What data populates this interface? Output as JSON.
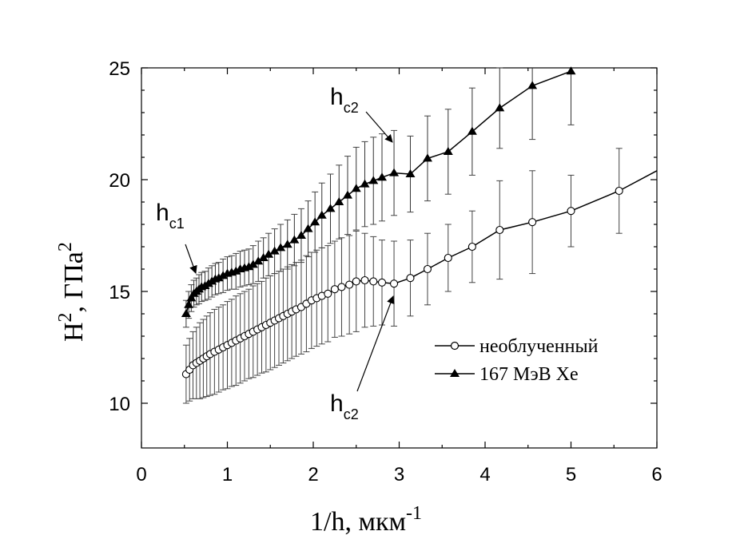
{
  "chart_data": {
    "type": "line",
    "xlabel_main": "1/h, мкм",
    "xlabel_sup": "-1",
    "ylabel_main": "H",
    "ylabel_sup1": "2",
    "ylabel_mid": ", ГПа",
    "ylabel_sup2": "2",
    "xlim": [
      0,
      6
    ],
    "ylim": [
      8,
      25
    ],
    "xticks": [
      "0",
      "1",
      "2",
      "3",
      "4",
      "5",
      "6"
    ],
    "yticks": [
      "10",
      "15",
      "20",
      "25"
    ],
    "legend_position": "lower-right",
    "series": [
      {
        "name": "необлученный",
        "marker": "circle-open",
        "x": [
          0.52,
          0.56,
          0.6,
          0.64,
          0.68,
          0.72,
          0.76,
          0.8,
          0.85,
          0.9,
          0.95,
          1.0,
          1.05,
          1.1,
          1.15,
          1.2,
          1.25,
          1.3,
          1.35,
          1.4,
          1.45,
          1.5,
          1.55,
          1.6,
          1.65,
          1.7,
          1.75,
          1.8,
          1.86,
          1.92,
          1.98,
          2.04,
          2.1,
          2.17,
          2.25,
          2.33,
          2.42,
          2.5,
          2.6,
          2.7,
          2.8,
          2.94,
          3.13,
          3.33,
          3.57,
          3.85,
          4.17,
          4.55,
          5.0,
          5.56,
          6.0
        ],
        "y": [
          11.3,
          11.5,
          11.7,
          11.8,
          11.9,
          12.0,
          12.1,
          12.2,
          12.3,
          12.4,
          12.5,
          12.6,
          12.7,
          12.8,
          12.9,
          13.0,
          13.1,
          13.2,
          13.3,
          13.4,
          13.5,
          13.6,
          13.7,
          13.8,
          13.9,
          14.0,
          14.1,
          14.2,
          14.3,
          14.45,
          14.6,
          14.7,
          14.8,
          14.9,
          15.1,
          15.2,
          15.3,
          15.45,
          15.5,
          15.45,
          15.4,
          15.35,
          15.6,
          16.0,
          16.5,
          17.0,
          17.75,
          18.1,
          18.6,
          19.5,
          20.4
        ],
        "err": [
          1.3,
          1.4,
          1.5,
          1.6,
          1.7,
          1.75,
          1.8,
          1.85,
          1.9,
          1.9,
          1.9,
          1.95,
          1.95,
          2.0,
          2.0,
          2.0,
          2.0,
          2.05,
          2.05,
          2.05,
          2.1,
          2.1,
          2.1,
          2.1,
          2.1,
          2.1,
          2.1,
          2.1,
          2.1,
          2.15,
          2.15,
          2.15,
          2.15,
          2.15,
          2.15,
          2.2,
          2.2,
          2.25,
          2.1,
          2.0,
          1.9,
          1.9,
          1.7,
          1.6,
          1.5,
          1.6,
          2.2,
          2.3,
          1.6,
          1.9,
          0
        ]
      },
      {
        "name": "167 МэВ Xe",
        "marker": "triangle-filled",
        "x": [
          0.52,
          0.55,
          0.58,
          0.61,
          0.64,
          0.67,
          0.7,
          0.74,
          0.78,
          0.82,
          0.86,
          0.9,
          0.95,
          1.0,
          1.05,
          1.1,
          1.15,
          1.2,
          1.25,
          1.3,
          1.36,
          1.42,
          1.48,
          1.55,
          1.62,
          1.7,
          1.78,
          1.86,
          1.94,
          2.02,
          2.1,
          2.2,
          2.3,
          2.4,
          2.5,
          2.6,
          2.7,
          2.8,
          2.94,
          3.13,
          3.33,
          3.57,
          3.85,
          4.17,
          4.55,
          5.0
        ],
        "y": [
          14.0,
          14.4,
          14.7,
          14.9,
          15.0,
          15.1,
          15.2,
          15.25,
          15.35,
          15.45,
          15.55,
          15.6,
          15.7,
          15.8,
          15.85,
          15.9,
          16.0,
          16.05,
          16.1,
          16.2,
          16.35,
          16.5,
          16.65,
          16.8,
          16.95,
          17.1,
          17.3,
          17.5,
          17.8,
          18.1,
          18.4,
          18.7,
          19.0,
          19.3,
          19.6,
          19.8,
          19.95,
          20.1,
          20.3,
          20.25,
          20.95,
          21.25,
          22.15,
          23.2,
          24.2,
          24.85
        ],
        "err": [
          0.6,
          0.6,
          0.6,
          0.6,
          0.6,
          0.65,
          0.65,
          0.65,
          0.7,
          0.7,
          0.7,
          0.7,
          0.75,
          0.75,
          0.75,
          0.8,
          0.8,
          0.8,
          0.8,
          0.85,
          0.9,
          0.9,
          0.95,
          1.0,
          1.05,
          1.1,
          1.15,
          1.2,
          1.25,
          1.35,
          1.45,
          1.55,
          1.65,
          1.75,
          1.85,
          1.9,
          1.95,
          1.95,
          1.9,
          1.7,
          1.9,
          1.9,
          1.95,
          1.8,
          2.4,
          2.4
        ]
      }
    ],
    "annotations": [
      {
        "main": "h",
        "sub": "c1"
      },
      {
        "main": "h",
        "sub": "c2"
      },
      {
        "main": "h",
        "sub": "c2"
      }
    ]
  }
}
